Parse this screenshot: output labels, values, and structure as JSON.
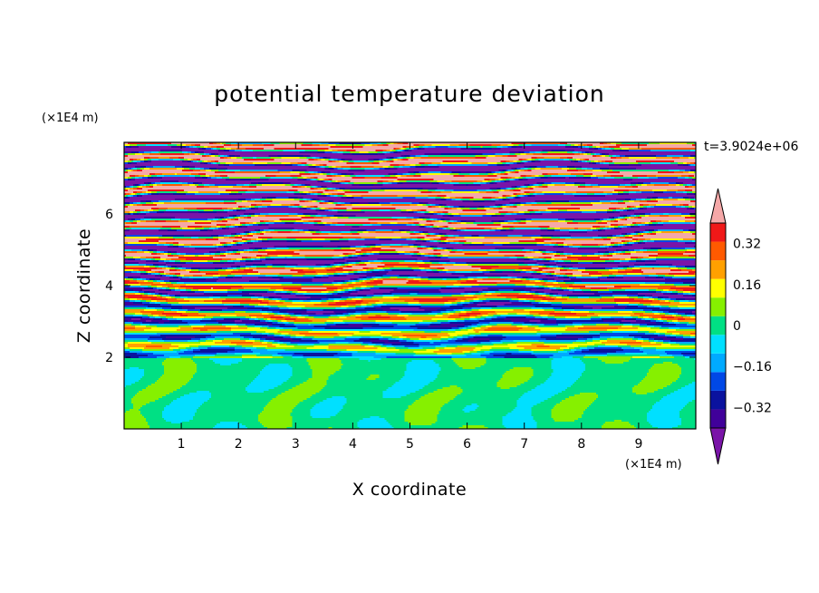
{
  "chart_data": {
    "type": "heatmap",
    "title": "potential temperature deviation",
    "xlabel": "X coordinate",
    "ylabel": "Z coordinate",
    "x_unit": "(×1E4 m)",
    "y_unit": "(×1E4 m)",
    "time_label": "t=3.9024e+06",
    "xlim": [
      0,
      10
    ],
    "ylim": [
      0,
      8
    ],
    "x_ticks": [
      "1",
      "2",
      "3",
      "4",
      "5",
      "6",
      "7",
      "8",
      "9"
    ],
    "x_tick_values": [
      1,
      2,
      3,
      4,
      5,
      6,
      7,
      8,
      9
    ],
    "y_ticks": [
      "2",
      "4",
      "6"
    ],
    "y_tick_values": [
      2,
      4,
      6
    ],
    "colorbar": {
      "levels": [
        -0.48,
        -0.4,
        -0.32,
        -0.24,
        -0.16,
        -0.08,
        0,
        0.08,
        0.16,
        0.24,
        0.32,
        0.4,
        0.48
      ],
      "colors": [
        "#7a14a8",
        "#40009a",
        "#0a129e",
        "#0048e6",
        "#00aaff",
        "#00e0ff",
        "#00e084",
        "#86f000",
        "#ffff00",
        "#ffa000",
        "#ff5a00",
        "#f01818",
        "#f5a8a8"
      ],
      "labels": [
        "0.32",
        "0.16",
        "0",
        "−0.16",
        "−0.32"
      ],
      "label_values": [
        0.32,
        0.16,
        0,
        -0.16,
        -0.32
      ]
    }
  }
}
